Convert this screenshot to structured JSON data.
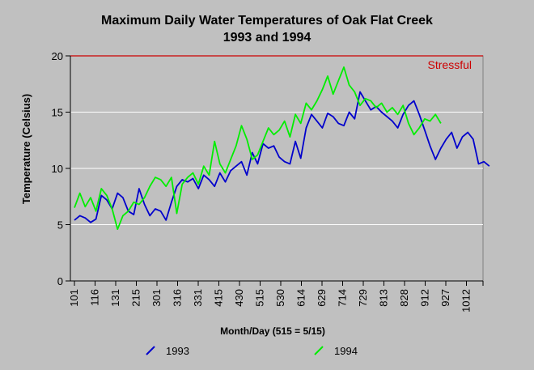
{
  "chart_data": {
    "type": "line",
    "title": "Maximum Daily Water Temperatures of Oak Flat Creek",
    "subtitle": "1993 and 1994",
    "xlabel": "Month/Day (515 = 5/15)",
    "ylabel": "Temperature (Celsius)",
    "ylim": [
      0,
      20
    ],
    "yticks": [
      0,
      5,
      10,
      15,
      20
    ],
    "x_tick_labels": [
      "101",
      "116",
      "131",
      "215",
      "301",
      "316",
      "331",
      "415",
      "430",
      "515",
      "530",
      "614",
      "629",
      "714",
      "729",
      "813",
      "828",
      "912",
      "927",
      "1012"
    ],
    "grid": true,
    "legend_position": "bottom",
    "threshold": {
      "label": "Stressful",
      "value": 20,
      "color": "#cc0000"
    },
    "series": [
      {
        "name": "1993",
        "color": "#0000cc",
        "x": [
          0,
          4,
          8,
          12,
          16,
          20,
          24,
          28,
          32,
          36,
          40,
          44,
          48,
          52,
          56,
          60,
          64,
          68,
          72,
          76,
          80,
          84,
          88,
          92,
          96,
          100,
          104,
          108,
          112,
          116,
          120,
          124,
          128,
          132,
          136,
          140,
          144,
          148,
          152,
          156,
          160,
          164,
          168,
          172,
          176,
          180,
          184,
          188,
          192,
          196,
          200,
          204,
          208,
          212,
          216,
          220,
          224,
          228,
          232,
          236,
          240,
          244,
          248,
          252,
          256,
          260,
          264,
          268,
          272,
          276,
          280,
          284,
          288,
          292,
          296,
          300,
          304,
          308
        ],
        "values": [
          5.4,
          5.8,
          5.6,
          5.2,
          5.5,
          7.6,
          7.2,
          6.4,
          7.8,
          7.4,
          6.2,
          5.9,
          8.2,
          6.8,
          5.8,
          6.4,
          6.2,
          5.4,
          7.0,
          8.4,
          9.0,
          8.8,
          9.1,
          8.2,
          9.4,
          9.0,
          8.4,
          9.6,
          8.8,
          9.8,
          10.2,
          10.6,
          9.4,
          11.4,
          10.4,
          12.2,
          11.8,
          12.0,
          11.0,
          10.6,
          10.4,
          12.4,
          10.9,
          13.6,
          14.8,
          14.2,
          13.6,
          14.9,
          14.6,
          14.0,
          13.8,
          15.0,
          14.4,
          16.8,
          16.0,
          15.2,
          15.5,
          15.0,
          14.6,
          14.2,
          13.6,
          14.8,
          15.6,
          16.0,
          14.8,
          13.4,
          12.0,
          10.8,
          11.8,
          12.6,
          13.2,
          11.8,
          12.8,
          13.2,
          12.6,
          10.4,
          10.6,
          10.2
        ]
      },
      {
        "name": "1994",
        "color": "#00ee00",
        "x": [
          0,
          4,
          8,
          12,
          16,
          20,
          24,
          28,
          32,
          36,
          40,
          44,
          48,
          52,
          56,
          60,
          64,
          68,
          72,
          76,
          80,
          84,
          88,
          92,
          96,
          100,
          104,
          108,
          112,
          116,
          120,
          124,
          128,
          132,
          136,
          140,
          144,
          148,
          152,
          156,
          160,
          164,
          168,
          172,
          176,
          180,
          184,
          188,
          192,
          196,
          200,
          204,
          208,
          212,
          216,
          220,
          224,
          228,
          232,
          236,
          240,
          244,
          248,
          252,
          256,
          260,
          264,
          268,
          272
        ],
        "values": [
          6.5,
          7.8,
          6.6,
          7.4,
          6.2,
          8.2,
          7.6,
          6.4,
          4.6,
          5.8,
          6.2,
          7.0,
          6.8,
          7.4,
          8.4,
          9.2,
          9.0,
          8.4,
          9.2,
          6.0,
          8.6,
          9.2,
          9.6,
          8.6,
          10.2,
          9.4,
          12.4,
          10.4,
          9.6,
          10.8,
          12.0,
          13.8,
          12.6,
          10.8,
          11.2,
          12.4,
          13.6,
          13.0,
          13.4,
          14.2,
          12.8,
          14.8,
          14.0,
          15.8,
          15.2,
          16.0,
          17.0,
          18.2,
          16.6,
          17.8,
          19.0,
          17.4,
          16.8,
          15.6,
          16.2,
          16.0,
          15.4,
          15.8,
          15.0,
          15.4,
          14.8,
          15.6,
          14.0,
          13.0,
          13.6,
          14.4,
          14.2,
          14.8,
          14.0
        ]
      }
    ]
  }
}
